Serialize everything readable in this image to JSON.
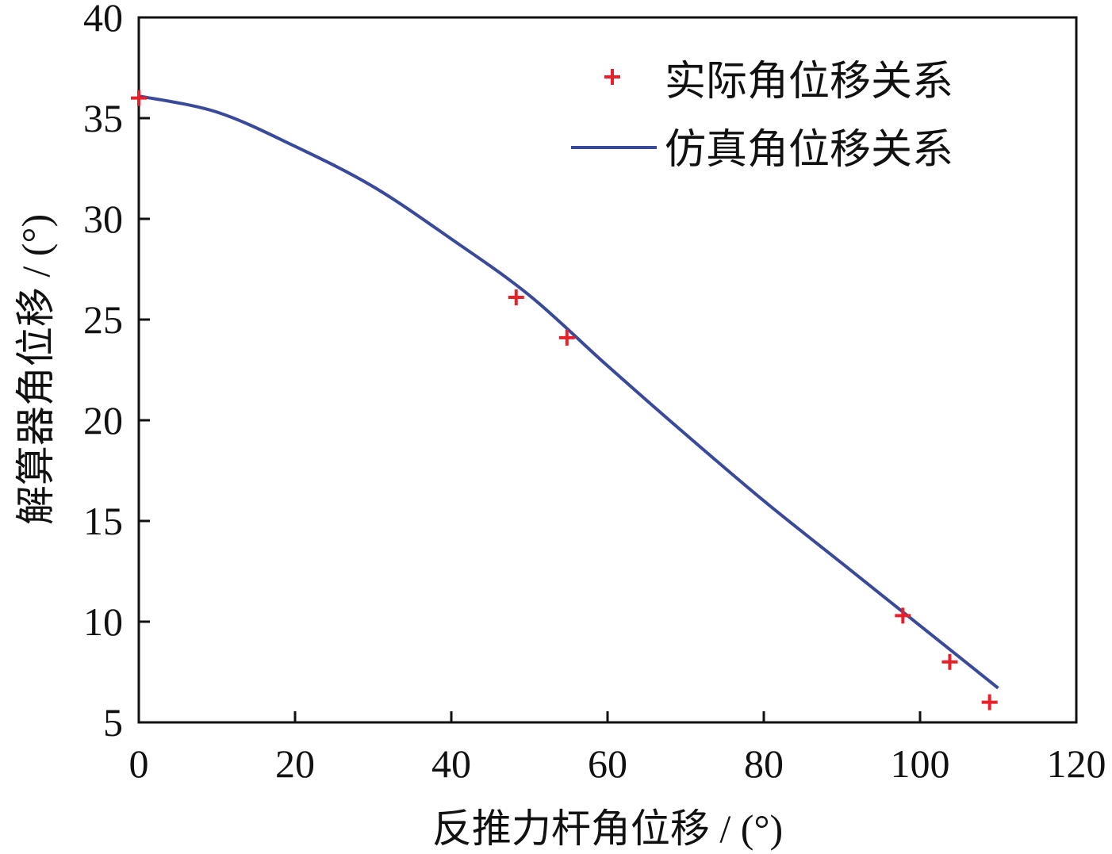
{
  "chart_data": {
    "type": "line",
    "title": "",
    "xlabel": "反推力杆角位移 / (°)",
    "ylabel": "解算器角位移 / (°)",
    "xlim": [
      0,
      120
    ],
    "ylim": [
      5,
      40
    ],
    "xticks": [
      0,
      20,
      40,
      60,
      80,
      100,
      120
    ],
    "yticks": [
      5,
      10,
      15,
      20,
      25,
      30,
      35,
      40
    ],
    "grid": false,
    "legend_position": "top-right",
    "series": [
      {
        "name": "实际角位移关系",
        "kind": "scatter",
        "marker": "plus",
        "color": "#e8202a",
        "x": [
          0,
          48.3,
          54.8,
          97.8,
          103.8,
          108.9
        ],
        "y": [
          36.0,
          26.1,
          24.1,
          10.3,
          8.0,
          6.0
        ]
      },
      {
        "name": "仿真角位移关系",
        "kind": "line",
        "color": "#3a4a9a",
        "x": [
          0,
          10,
          20,
          30,
          40,
          50,
          60,
          70,
          80,
          90,
          100,
          110
        ],
        "y": [
          36.1,
          35.3,
          33.6,
          31.6,
          29.0,
          26.2,
          22.7,
          19.3,
          16.0,
          12.9,
          9.8,
          6.7
        ]
      }
    ]
  }
}
